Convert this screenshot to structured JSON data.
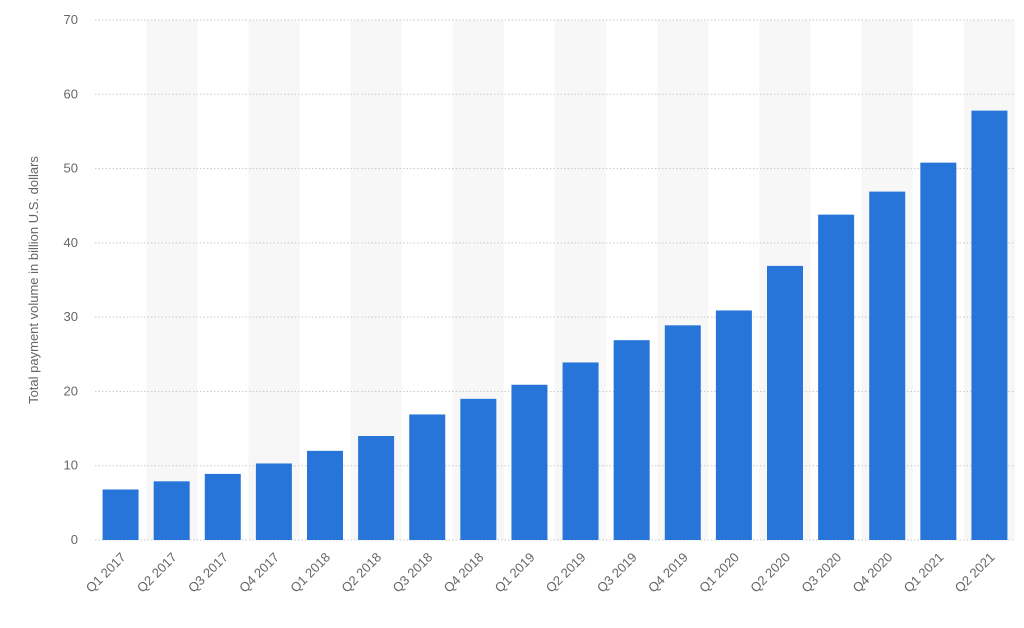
{
  "chart_data": {
    "type": "bar",
    "y_label": "Total payment volume in billion U.S. dollars",
    "categories": [
      "Q1 2017",
      "Q2 2017",
      "Q3 2017",
      "Q4 2017",
      "Q1 2018",
      "Q2 2018",
      "Q3 2018",
      "Q4 2018",
      "Q1 2019",
      "Q2 2019",
      "Q3 2019",
      "Q4 2019",
      "Q1 2020",
      "Q2 2020",
      "Q3 2020",
      "Q4 2020",
      "Q1 2021",
      "Q2 2021"
    ],
    "values": [
      6.8,
      7.9,
      8.9,
      10.3,
      12,
      14,
      16.9,
      19,
      20.9,
      23.9,
      26.9,
      28.9,
      30.9,
      36.9,
      43.8,
      46.9,
      50.8,
      57.8
    ],
    "color": "#2875d9",
    "ylim": [
      0,
      70
    ],
    "yticks": [
      0,
      10,
      20,
      30,
      40,
      50,
      60,
      70
    ],
    "grid": true
  }
}
